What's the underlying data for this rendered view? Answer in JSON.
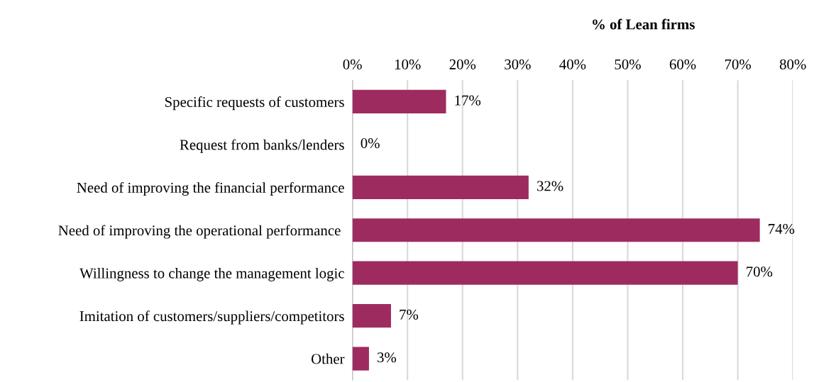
{
  "chart_data": {
    "type": "bar",
    "orientation": "horizontal",
    "xlabel": "% of Lean firms",
    "categories": [
      "Specific requests of customers",
      "Request from banks/lenders",
      "Need of improving the financial performance",
      "Need of improving the operational performance ",
      "Willingness to change the management logic",
      "Imitation of customers/suppliers/competitors",
      "Other"
    ],
    "values": [
      17,
      0,
      32,
      74,
      70,
      7,
      3
    ],
    "value_labels": [
      "17%",
      "0%",
      "32%",
      "74%",
      "70%",
      "7%",
      "3%"
    ],
    "color": "#9e2b5f",
    "xlim": [
      0,
      80
    ],
    "xticks": [
      {
        "value": 0,
        "label": "0%"
      },
      {
        "value": 10,
        "label": "10%"
      },
      {
        "value": 20,
        "label": "20%"
      },
      {
        "value": 30,
        "label": "30%"
      },
      {
        "value": 40,
        "label": "40%"
      },
      {
        "value": 50,
        "label": "50%"
      },
      {
        "value": 60,
        "label": "60%"
      },
      {
        "value": 70,
        "label": "70%"
      },
      {
        "value": 80,
        "label": "80%"
      }
    ],
    "grid": "x"
  }
}
